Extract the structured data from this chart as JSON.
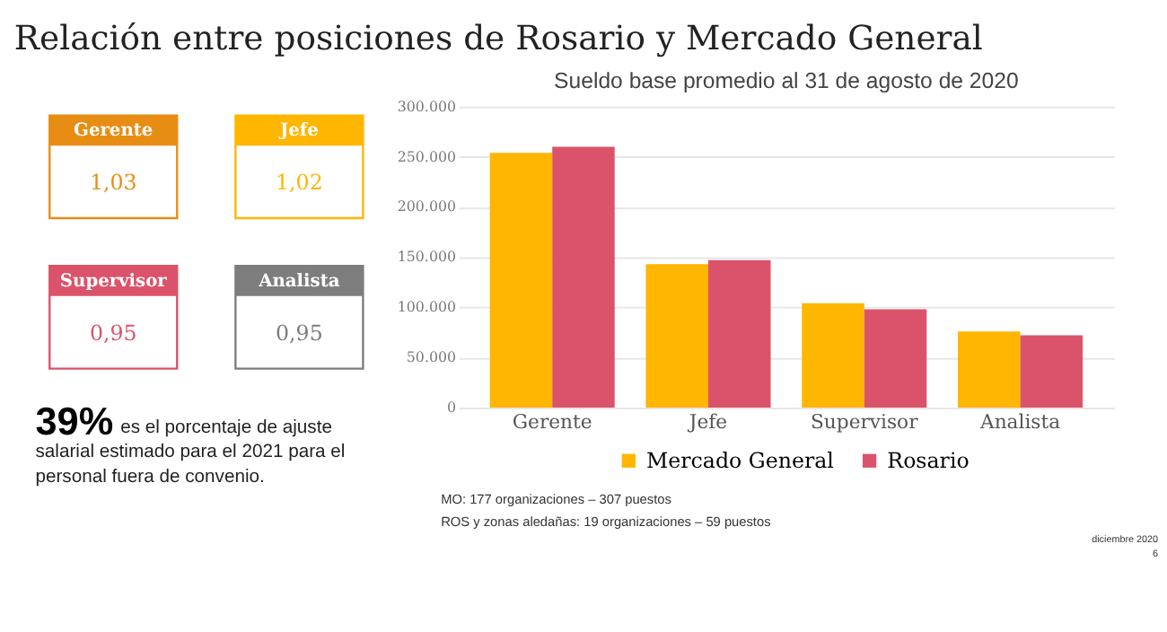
{
  "chart_data": [
    {
      "type": "other",
      "title": "Relación entre posiciones de Rosario y Mercado General",
      "categories": [
        "Gerente",
        "Jefe",
        "Supervisor",
        "Analista"
      ],
      "value_labels": [
        "1,03",
        "1,02",
        "0,95",
        "0,95"
      ],
      "colors": [
        "#e88d14",
        "#ffb600",
        "#db536a",
        "#7d7d7d"
      ],
      "annotations": [
        "39%",
        "es el porcentaje de ajuste salarial estimado para el 2021 para el personal fuera de convenio."
      ]
    },
    {
      "type": "bar",
      "title": "Sueldo base promedio al 31 de agosto de 2020",
      "categories": [
        "Gerente",
        "Jefe",
        "Supervisor",
        "Analista"
      ],
      "series": [
        {
          "name": "Mercado General",
          "color": "#ffb600",
          "values": [
            254000,
            143000,
            104000,
            76000
          ]
        },
        {
          "name": "Rosario",
          "color": "#db536a",
          "values": [
            260000,
            147000,
            98000,
            72000
          ]
        }
      ],
      "ylim": [
        0,
        300000
      ],
      "yticks": [
        {
          "value": 0,
          "label": "0"
        },
        {
          "value": 50000,
          "label": "50.000"
        },
        {
          "value": 100000,
          "label": "100.000"
        },
        {
          "value": 150000,
          "label": "150.000"
        },
        {
          "value": 200000,
          "label": "200.000"
        },
        {
          "value": 250000,
          "label": "250.000"
        },
        {
          "value": 300000,
          "label": "300.000"
        }
      ],
      "grid": "y",
      "legend": "bottom",
      "annotations": [
        "MO:  177 organizaciones – 307 puestos",
        "ROS y zonas aledañas:  19 organizaciones –  59 puestos",
        "diciembre 2020",
        "6"
      ]
    }
  ]
}
